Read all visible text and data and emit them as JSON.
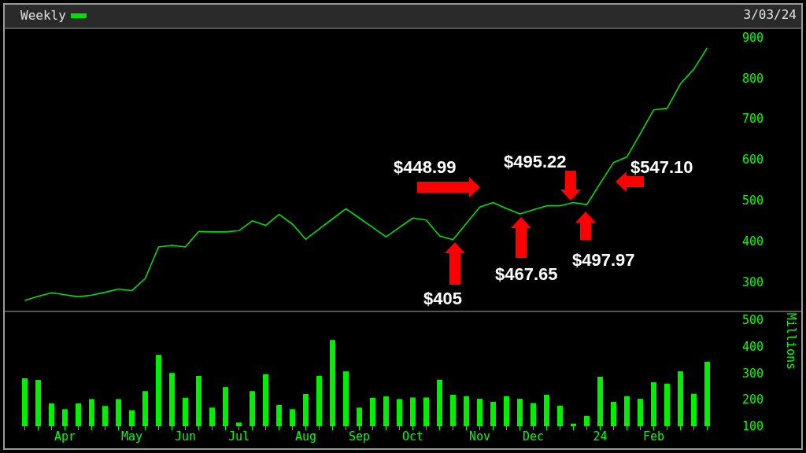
{
  "chart_data": [
    {
      "type": "line",
      "categories": [
        null,
        null,
        null,
        null,
        null,
        null,
        null,
        null,
        null,
        null,
        null,
        null,
        null,
        null,
        null,
        null,
        null,
        null,
        null,
        null,
        null,
        null,
        null,
        null,
        null,
        null,
        null,
        null,
        null,
        null,
        null,
        null,
        null,
        null,
        null,
        null,
        null,
        null,
        null,
        null,
        null,
        null,
        null,
        null,
        null,
        null,
        null,
        null,
        null,
        null,
        null,
        null
      ],
      "series": [
        {
          "name": "Weekly",
          "color": "#00e000",
          "values": [
            255,
            265,
            274,
            269,
            264,
            268,
            275,
            283,
            279,
            309,
            386,
            390,
            386,
            424,
            423,
            423,
            426,
            450,
            439,
            466,
            442,
            405,
            430,
            455,
            480,
            457,
            434,
            411,
            434,
            457,
            452,
            413,
            404,
            444,
            484,
            495,
            480,
            467,
            477,
            487,
            487,
            495,
            490,
            542,
            593,
            607,
            664,
            722,
            726,
            786,
            822,
            874
          ]
        }
      ],
      "ylim": [
        230,
        920
      ],
      "yticks": [
        300,
        400,
        500,
        600,
        700,
        800,
        900
      ],
      "tick_labels": "y",
      "legend": "top left",
      "marker": "none",
      "annotations": [
        "3/03/24",
        "$448.99",
        "$495.22",
        "$547.10",
        "$405",
        "$467.65",
        "$497.97"
      ]
    },
    {
      "type": "bar",
      "categories": [
        null,
        null,
        null,
        "Apr",
        null,
        null,
        null,
        null,
        "May",
        null,
        null,
        null,
        "Jun",
        null,
        null,
        null,
        "Jul",
        null,
        null,
        null,
        null,
        "Aug",
        null,
        null,
        null,
        "Sep",
        null,
        null,
        null,
        "Oct",
        null,
        null,
        null,
        null,
        "Nov",
        null,
        null,
        null,
        "Dec",
        null,
        null,
        null,
        null,
        "24",
        null,
        null,
        null,
        "Feb",
        null,
        null,
        null,
        null
      ],
      "values": [
        280,
        274,
        186,
        164,
        186,
        202,
        176,
        202,
        160,
        232,
        368,
        300,
        207,
        289,
        170,
        247,
        114,
        232,
        295,
        180,
        164,
        221,
        289,
        424,
        306,
        170,
        207,
        212,
        202,
        208,
        208,
        275,
        218,
        213,
        203,
        192,
        213,
        203,
        187,
        218,
        177,
        110,
        139,
        286,
        192,
        213,
        203,
        265,
        260,
        306,
        222,
        342
      ],
      "color": "#00f000",
      "ylim": [
        100,
        525
      ],
      "yticks": [
        100,
        200,
        300,
        400,
        500
      ],
      "ylabel": "Millions"
    }
  ]
}
